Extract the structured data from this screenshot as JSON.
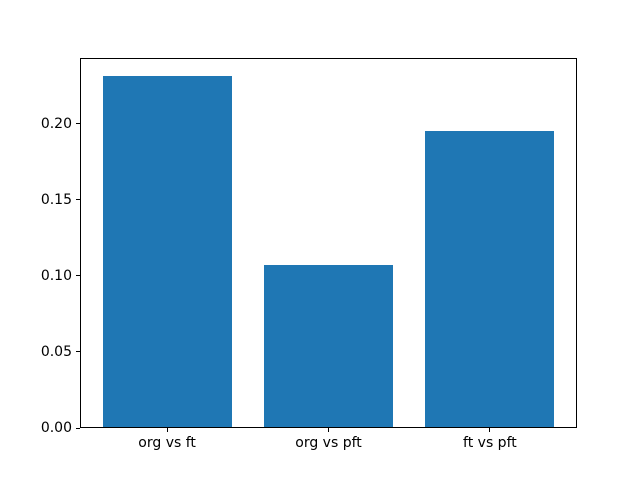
{
  "figure": {
    "background": "#ffffff",
    "text_color": "#000000",
    "spine_color": "#000000"
  },
  "chart_data": {
    "type": "bar",
    "categories": [
      "org vs ft",
      "org vs pft",
      "ft vs pft"
    ],
    "values": [
      0.231,
      0.107,
      0.195
    ],
    "title": "",
    "xlabel": "",
    "ylabel": "",
    "ylim": [
      0,
      0.243
    ],
    "yticks": [
      0,
      0.05,
      0.1,
      0.15,
      0.2
    ],
    "ytick_labels": [
      "0.00",
      "0.05",
      "0.10",
      "0.15",
      "0.20"
    ],
    "bar_color": "#1f77b4",
    "bar_width_fraction": 0.8,
    "grid": false,
    "legend_position": "none"
  }
}
